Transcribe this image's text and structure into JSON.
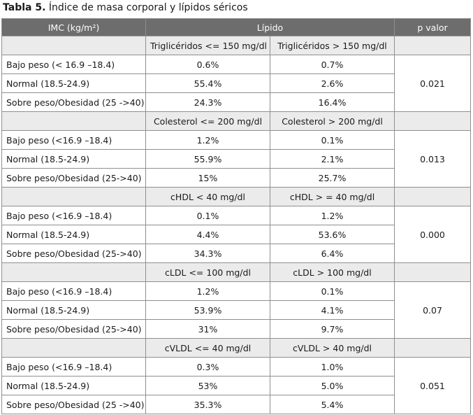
{
  "caption": {
    "label": "Tabla 5.",
    "text": "Índice de masa corporal y lípidos séricos"
  },
  "header": {
    "col1": "IMC (kg/m²)",
    "col2": "Lípido",
    "col3": "p valor"
  },
  "sections": [
    {
      "left_header": "Triglicéridos <= 150 mg/dl",
      "right_header": "Triglicéridos > 150 mg/dl",
      "p_value": "0.021",
      "rows": [
        {
          "category": "Bajo peso (< 16.9 –18.4)",
          "left": "0.6%",
          "right": "0.7%"
        },
        {
          "category": "Normal (18.5-24.9)",
          "left": "55.4%",
          "right": "2.6%"
        },
        {
          "category": "Sobre peso/Obesidad (25 ->40)",
          "left": "24.3%",
          "right": "16.4%"
        }
      ]
    },
    {
      "left_header": "Colesterol <= 200 mg/dl",
      "right_header": "Colesterol > 200 mg/dl",
      "p_value": "0.013",
      "rows": [
        {
          "category": "Bajo peso (<16.9 –18.4)",
          "left": "1.2%",
          "right": "0.1%"
        },
        {
          "category": "Normal (18.5-24.9)",
          "left": "55.9%",
          "right": "2.1%"
        },
        {
          "category": "Sobre peso/Obesidad (25->40)",
          "left": "15%",
          "right": "25.7%"
        }
      ]
    },
    {
      "left_header": "cHDL < 40 mg/dl",
      "right_header": "cHDL > = 40 mg/dl",
      "p_value": "0.000",
      "rows": [
        {
          "category": "Bajo peso (<16.9 –18.4)",
          "left": "0.1%",
          "right": "1.2%"
        },
        {
          "category": "Normal (18.5-24.9)",
          "left": "4.4%",
          "right": "53.6%"
        },
        {
          "category": "Sobre peso/Obesidad (25->40)",
          "left": "34.3%",
          "right": "6.4%"
        }
      ]
    },
    {
      "left_header": "cLDL <= 100 mg/dl",
      "right_header": "cLDL > 100 mg/dl",
      "p_value": "0.07",
      "rows": [
        {
          "category": "Bajo peso (<16.9 –18.4)",
          "left": "1.2%",
          "right": "0.1%"
        },
        {
          "category": "Normal (18.5-24.9)",
          "left": "53.9%",
          "right": "4.1%"
        },
        {
          "category": "Sobre peso/Obesidad (25->40)",
          "left": "31%",
          "right": "9.7%"
        }
      ]
    },
    {
      "left_header": "cVLDL <= 40 mg/dl",
      "right_header": "cVLDL > 40 mg/dl",
      "p_value": "0.051",
      "rows": [
        {
          "category": "Bajo peso (<16.9 –18.4)",
          "left": "0.3%",
          "right": "1.0%"
        },
        {
          "category": "Normal (18.5-24.9)",
          "left": "53%",
          "right": "5.0%"
        },
        {
          "category": "Sobre peso/Obesidad (25 ->40)",
          "left": "35.3%",
          "right": "5.4%"
        }
      ]
    }
  ]
}
